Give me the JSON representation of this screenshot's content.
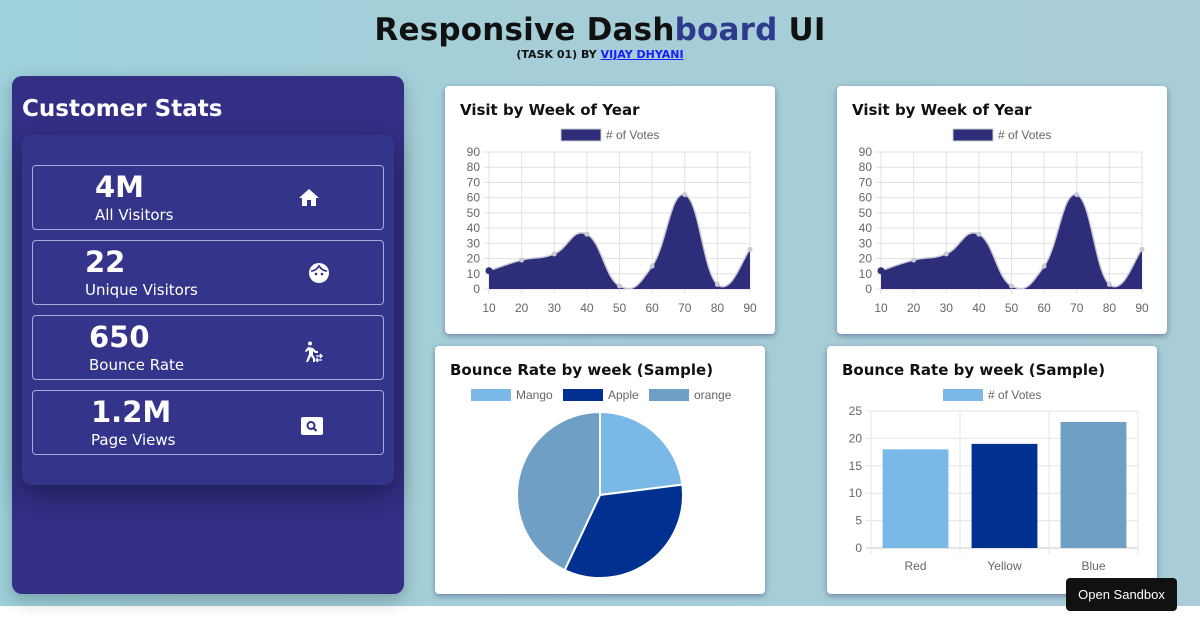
{
  "header": {
    "title_part1": "Responsive Dash",
    "title_accent": "board",
    "title_part2": " UI",
    "subtitle_prefix": "(TASK 01) BY ",
    "author_link": "VIJAY DHYANI"
  },
  "sidebar": {
    "title": "Customer Stats",
    "stats": [
      {
        "value": "4M",
        "label": "All Visitors",
        "icon": "home-icon"
      },
      {
        "value": "22",
        "label": "Unique Visitors",
        "icon": "face-icon"
      },
      {
        "value": "650",
        "label": "Bounce Rate",
        "icon": "walking-icon"
      },
      {
        "value": "1.2M",
        "label": "Page Views",
        "icon": "pageview-icon"
      }
    ]
  },
  "colors": {
    "primary": "#322f85",
    "line_fill": "#2e2d7a",
    "light_blue": "#7ab8e8",
    "dark_blue": "#003190",
    "steel_blue": "#6f9fc4"
  },
  "chart_data": [
    {
      "type": "area",
      "title": "Visit by Week of Year",
      "legend": "# of Votes",
      "x": [
        10,
        20,
        30,
        40,
        50,
        60,
        70,
        80,
        90
      ],
      "series": [
        {
          "name": "# of Votes",
          "values": [
            12,
            19,
            23,
            36,
            2,
            15,
            62,
            3,
            26
          ]
        }
      ],
      "yticks": [
        0,
        10,
        20,
        30,
        40,
        50,
        60,
        70,
        80,
        90
      ],
      "ylim": [
        0,
        90
      ]
    },
    {
      "type": "area",
      "title": "Visit by Week of Year",
      "legend": "# of Votes",
      "x": [
        10,
        20,
        30,
        40,
        50,
        60,
        70,
        80,
        90
      ],
      "series": [
        {
          "name": "# of Votes",
          "values": [
            12,
            19,
            23,
            36,
            2,
            15,
            62,
            3,
            26
          ]
        }
      ],
      "yticks": [
        0,
        10,
        20,
        30,
        40,
        50,
        60,
        70,
        80,
        90
      ],
      "ylim": [
        0,
        90
      ]
    },
    {
      "type": "pie",
      "title": "Bounce Rate by week (Sample)",
      "categories": [
        "Mango",
        "Apple",
        "orange"
      ],
      "values": [
        23,
        34,
        43
      ]
    },
    {
      "type": "bar",
      "title": "Bounce Rate by week (Sample)",
      "legend": "# of Votes",
      "categories": [
        "Red",
        "Yellow",
        "Blue"
      ],
      "values": [
        18,
        19,
        23
      ],
      "yticks": [
        0,
        5,
        10,
        15,
        20,
        25
      ],
      "ylim": [
        0,
        25
      ]
    }
  ],
  "sandbox_button": "Open Sandbox"
}
